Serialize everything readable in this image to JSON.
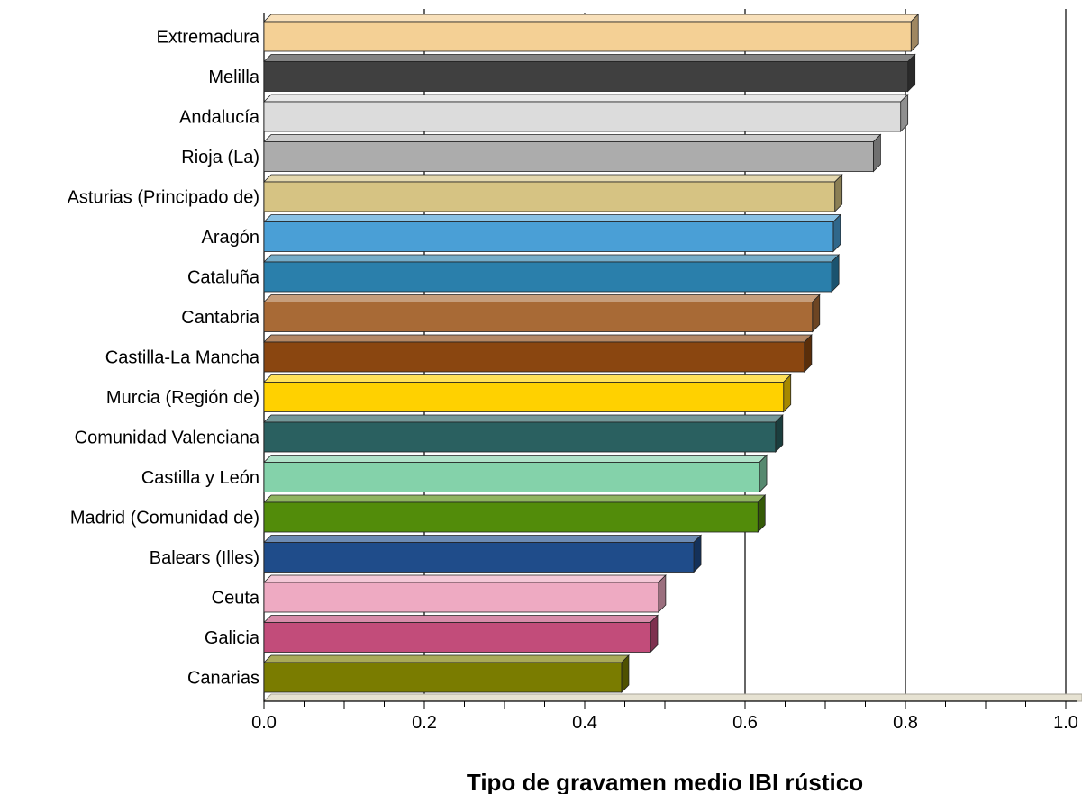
{
  "chart_data": {
    "type": "bar",
    "orientation": "horizontal",
    "title": "",
    "xlabel": "Tipo de gravamen medio IBI rústico",
    "ylabel": "",
    "xlim": [
      0.0,
      1.0
    ],
    "x_ticks": [
      "0.0",
      "0.2",
      "0.4",
      "0.6",
      "0.8",
      "1.0"
    ],
    "x_tick_values": [
      0.0,
      0.2,
      0.4,
      0.6,
      0.8,
      1.0
    ],
    "grid": "vertical lines at 0.2, 0.6, 0.8, 1.0",
    "legend": "none",
    "categories": [
      "Extremadura",
      "Melilla",
      "Andalucía",
      "Rioja (La)",
      "Asturias (Principado de)",
      "Aragón",
      "Cataluña",
      "Cantabria",
      "Castilla-La Mancha",
      "Murcia (Región de)",
      "Comunidad Valenciana",
      "Castilla y León",
      "Madrid (Comunidad de)",
      "Balears (Illes)",
      "Ceuta",
      "Galicia",
      "Canarias"
    ],
    "values": [
      0.807,
      0.803,
      0.794,
      0.76,
      0.712,
      0.71,
      0.708,
      0.684,
      0.674,
      0.648,
      0.638,
      0.618,
      0.616,
      0.536,
      0.492,
      0.482,
      0.446
    ],
    "colors": [
      "#f4d095",
      "#404040",
      "#dcdcdc",
      "#acacac",
      "#d6c383",
      "#4a9fd6",
      "#2a7fab",
      "#a86a36",
      "#8a4610",
      "#ffd100",
      "#2a6060",
      "#84d2aa",
      "#528c0a",
      "#1f4c8a",
      "#eeaac2",
      "#c24c7a",
      "#7a7c00"
    ]
  }
}
